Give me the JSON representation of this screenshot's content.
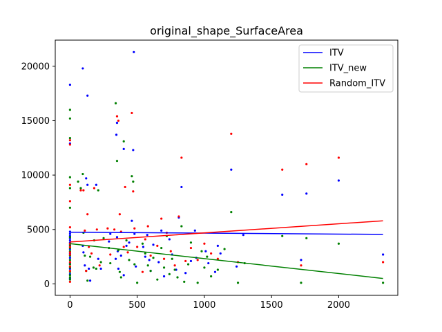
{
  "chart_data": {
    "type": "scatter",
    "title": "original_shape_SurfaceArea",
    "xlabel": "",
    "ylabel": "",
    "xlim": [
      -110,
      2440
    ],
    "ylim": [
      -1050,
      22400
    ],
    "xticks": [
      0,
      500,
      1000,
      1500,
      2000
    ],
    "yticks": [
      0,
      5000,
      10000,
      15000,
      20000
    ],
    "grid": false,
    "legend_position": "top-right",
    "series": [
      {
        "name": "ITV",
        "color": "#0000ff",
        "trend": [
          [
            0,
            4750
          ],
          [
            2330,
            4550
          ]
        ],
        "points": [
          [
            0,
            18300
          ],
          [
            95,
            19800
          ],
          [
            130,
            17300
          ],
          [
            345,
            13700
          ],
          [
            350,
            14800
          ],
          [
            400,
            12400
          ],
          [
            470,
            12300
          ],
          [
            475,
            21300
          ],
          [
            0,
            12900
          ],
          [
            0,
            4800
          ],
          [
            0,
            4600
          ],
          [
            0,
            4400
          ],
          [
            0,
            4200
          ],
          [
            0,
            4000
          ],
          [
            0,
            3800
          ],
          [
            0,
            3500
          ],
          [
            0,
            3200
          ],
          [
            0,
            2800
          ],
          [
            0,
            2400
          ],
          [
            0,
            1900
          ],
          [
            0,
            1400
          ],
          [
            0,
            900
          ],
          [
            0,
            500
          ],
          [
            95,
            3500
          ],
          [
            100,
            2900
          ],
          [
            110,
            1700
          ],
          [
            120,
            9700
          ],
          [
            130,
            9100
          ],
          [
            140,
            1400
          ],
          [
            150,
            300
          ],
          [
            195,
            9100
          ],
          [
            210,
            2300
          ],
          [
            230,
            1400
          ],
          [
            290,
            3900
          ],
          [
            300,
            4600
          ],
          [
            340,
            2300
          ],
          [
            350,
            4300
          ],
          [
            355,
            3000
          ],
          [
            360,
            1400
          ],
          [
            380,
            2600
          ],
          [
            400,
            800
          ],
          [
            420,
            3500
          ],
          [
            440,
            3800
          ],
          [
            460,
            5800
          ],
          [
            480,
            4600
          ],
          [
            490,
            1600
          ],
          [
            545,
            3400
          ],
          [
            560,
            2500
          ],
          [
            575,
            4500
          ],
          [
            590,
            2200
          ],
          [
            600,
            1200
          ],
          [
            620,
            3600
          ],
          [
            660,
            2000
          ],
          [
            680,
            4900
          ],
          [
            700,
            700
          ],
          [
            740,
            4100
          ],
          [
            760,
            2700
          ],
          [
            790,
            1300
          ],
          [
            810,
            6100
          ],
          [
            830,
            8900
          ],
          [
            860,
            1000
          ],
          [
            900,
            2100
          ],
          [
            930,
            4900
          ],
          [
            940,
            2400
          ],
          [
            1010,
            3000
          ],
          [
            1030,
            1900
          ],
          [
            1080,
            1100
          ],
          [
            1100,
            3500
          ],
          [
            1120,
            2800
          ],
          [
            1200,
            10500
          ],
          [
            1240,
            1600
          ],
          [
            1290,
            4500
          ],
          [
            1580,
            8200
          ],
          [
            1720,
            2200
          ],
          [
            1760,
            8300
          ],
          [
            2000,
            9500
          ],
          [
            2330,
            2700
          ]
        ]
      },
      {
        "name": "ITV_new",
        "color": "#008000",
        "trend": [
          [
            0,
            3700
          ],
          [
            2330,
            500
          ]
        ],
        "points": [
          [
            0,
            16000
          ],
          [
            0,
            15200
          ],
          [
            0,
            13400
          ],
          [
            0,
            9800
          ],
          [
            0,
            8800
          ],
          [
            0,
            7000
          ],
          [
            0,
            4300
          ],
          [
            0,
            3600
          ],
          [
            0,
            3300
          ],
          [
            0,
            3000
          ],
          [
            0,
            2600
          ],
          [
            0,
            2200
          ],
          [
            0,
            1800
          ],
          [
            0,
            1500
          ],
          [
            0,
            1100
          ],
          [
            0,
            800
          ],
          [
            0,
            600
          ],
          [
            0,
            400
          ],
          [
            60,
            9400
          ],
          [
            80,
            8800
          ],
          [
            95,
            10100
          ],
          [
            100,
            4700
          ],
          [
            110,
            2600
          ],
          [
            120,
            1200
          ],
          [
            130,
            300
          ],
          [
            150,
            2500
          ],
          [
            175,
            1500
          ],
          [
            180,
            4000
          ],
          [
            195,
            1400
          ],
          [
            210,
            8600
          ],
          [
            230,
            2000
          ],
          [
            250,
            4200
          ],
          [
            290,
            3300
          ],
          [
            300,
            1900
          ],
          [
            340,
            16600
          ],
          [
            350,
            11300
          ],
          [
            360,
            3100
          ],
          [
            370,
            1100
          ],
          [
            380,
            600
          ],
          [
            400,
            13100
          ],
          [
            420,
            4000
          ],
          [
            440,
            2200
          ],
          [
            460,
            9900
          ],
          [
            470,
            9400
          ],
          [
            480,
            1800
          ],
          [
            500,
            100
          ],
          [
            540,
            3700
          ],
          [
            560,
            2800
          ],
          [
            580,
            1700
          ],
          [
            600,
            1200
          ],
          [
            620,
            2400
          ],
          [
            650,
            400
          ],
          [
            680,
            3300
          ],
          [
            700,
            1500
          ],
          [
            720,
            4400
          ],
          [
            740,
            900
          ],
          [
            760,
            2300
          ],
          [
            780,
            1300
          ],
          [
            800,
            600
          ],
          [
            830,
            5300
          ],
          [
            850,
            200
          ],
          [
            880,
            1800
          ],
          [
            900,
            3800
          ],
          [
            950,
            100
          ],
          [
            980,
            3000
          ],
          [
            1000,
            1500
          ],
          [
            1020,
            2500
          ],
          [
            1050,
            700
          ],
          [
            1100,
            1300
          ],
          [
            1150,
            3200
          ],
          [
            1200,
            6600
          ],
          [
            1250,
            100
          ],
          [
            1300,
            1900
          ],
          [
            1580,
            4400
          ],
          [
            1720,
            100
          ],
          [
            1760,
            4200
          ],
          [
            2000,
            3700
          ],
          [
            2330,
            100
          ]
        ]
      },
      {
        "name": "Random_ITV",
        "color": "#ff0000",
        "trend": [
          [
            0,
            3850
          ],
          [
            2330,
            5800
          ]
        ],
        "points": [
          [
            0,
            13200
          ],
          [
            0,
            12800
          ],
          [
            0,
            9100
          ],
          [
            0,
            7600
          ],
          [
            0,
            5200
          ],
          [
            0,
            3700
          ],
          [
            0,
            3400
          ],
          [
            0,
            2900
          ],
          [
            0,
            2700
          ],
          [
            0,
            2000
          ],
          [
            0,
            1600
          ],
          [
            0,
            1200
          ],
          [
            0,
            200
          ],
          [
            80,
            8600
          ],
          [
            100,
            8600
          ],
          [
            110,
            4900
          ],
          [
            120,
            1200
          ],
          [
            130,
            6400
          ],
          [
            140,
            3400
          ],
          [
            160,
            2800
          ],
          [
            180,
            8800
          ],
          [
            200,
            5000
          ],
          [
            220,
            1700
          ],
          [
            280,
            5100
          ],
          [
            300,
            2700
          ],
          [
            330,
            5000
          ],
          [
            350,
            15400
          ],
          [
            360,
            15000
          ],
          [
            370,
            6400
          ],
          [
            380,
            4800
          ],
          [
            400,
            3400
          ],
          [
            410,
            8900
          ],
          [
            430,
            2900
          ],
          [
            460,
            15700
          ],
          [
            470,
            8500
          ],
          [
            480,
            5100
          ],
          [
            500,
            3400
          ],
          [
            540,
            1100
          ],
          [
            560,
            4100
          ],
          [
            580,
            5300
          ],
          [
            600,
            2600
          ],
          [
            650,
            3500
          ],
          [
            680,
            6000
          ],
          [
            700,
            2300
          ],
          [
            720,
            4700
          ],
          [
            750,
            3000
          ],
          [
            780,
            1700
          ],
          [
            810,
            6200
          ],
          [
            830,
            11600
          ],
          [
            860,
            2100
          ],
          [
            900,
            3300
          ],
          [
            950,
            2200
          ],
          [
            1000,
            3700
          ],
          [
            1050,
            2800
          ],
          [
            1100,
            2300
          ],
          [
            1200,
            13800
          ],
          [
            1250,
            2000
          ],
          [
            1580,
            10500
          ],
          [
            1720,
            1700
          ],
          [
            1760,
            11000
          ],
          [
            2000,
            11600
          ],
          [
            2330,
            2000
          ]
        ]
      }
    ]
  }
}
